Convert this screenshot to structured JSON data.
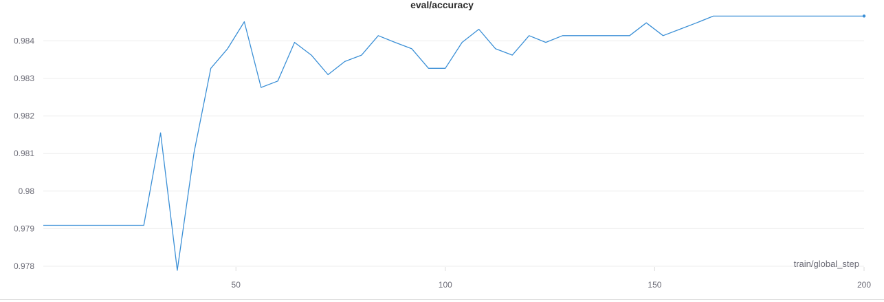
{
  "chart_data": {
    "type": "line",
    "title": "eval/accuracy",
    "xlabel": "train/global_step",
    "ylabel": "",
    "xlim": [
      0,
      200
    ],
    "ylim": [
      0.9778,
      0.98465
    ],
    "x_ticks": [
      50,
      100,
      150,
      200
    ],
    "y_ticks": [
      0.978,
      0.979,
      0.98,
      0.981,
      0.982,
      0.983,
      0.984
    ],
    "y_tick_labels": [
      "0.978",
      "0.979",
      "0.98",
      "0.981",
      "0.982",
      "0.983",
      "0.984"
    ],
    "grid": true,
    "legend": "none",
    "line_color": "#3a8fd6",
    "gridline_color": "#ececec",
    "series": [
      {
        "x": [
          4,
          8,
          12,
          16,
          20,
          24,
          28,
          32,
          36,
          40,
          44,
          48,
          52,
          56,
          60,
          64,
          68,
          72,
          76,
          80,
          84,
          88,
          92,
          96,
          100,
          104,
          108,
          112,
          116,
          120,
          124,
          128,
          132,
          136,
          140,
          144,
          148,
          152,
          156,
          160,
          164,
          168,
          172,
          176,
          180,
          184,
          188,
          192,
          196,
          200
        ],
        "y": [
          0.97909,
          0.97909,
          0.97909,
          0.97909,
          0.97909,
          0.97909,
          0.97909,
          0.98155,
          0.97789,
          0.98103,
          0.98327,
          0.98379,
          0.98451,
          0.98276,
          0.98293,
          0.98396,
          0.98362,
          0.9831,
          0.98345,
          0.98362,
          0.98414,
          0.98396,
          0.98379,
          0.98327,
          0.98327,
          0.98396,
          0.98431,
          0.98379,
          0.98362,
          0.98414,
          0.98396,
          0.98414,
          0.98414,
          0.98414,
          0.98414,
          0.98414,
          0.98448,
          0.98414,
          0.98431,
          0.98448,
          0.98466,
          0.98466,
          0.98466,
          0.98466,
          0.98466,
          0.98466,
          0.98466,
          0.98466,
          0.98466,
          0.98466
        ]
      }
    ]
  }
}
